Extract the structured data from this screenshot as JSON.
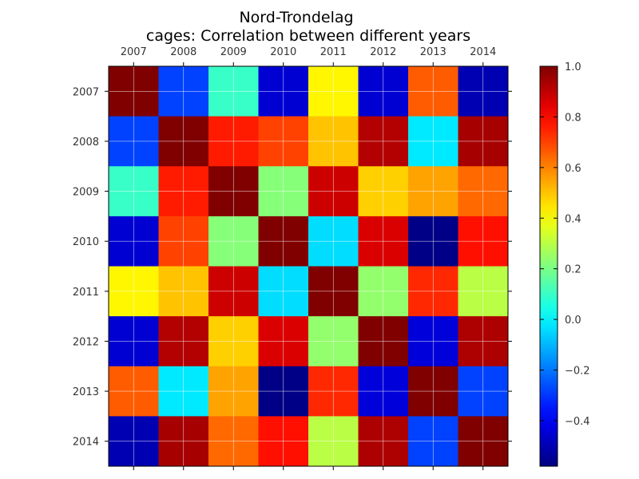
{
  "chart_data": {
    "type": "heatmap",
    "title": "Nord-Trondelag",
    "subtitle": "cages: Correlation between different years",
    "xlabel": "",
    "ylabel": "",
    "x_categories": [
      "2007",
      "2008",
      "2009",
      "2010",
      "2011",
      "2012",
      "2013",
      "2014"
    ],
    "y_categories": [
      "2007",
      "2008",
      "2009",
      "2010",
      "2011",
      "2012",
      "2013",
      "2014"
    ],
    "values": [
      [
        1.0,
        -0.28,
        0.1,
        -0.45,
        0.42,
        -0.45,
        0.66,
        -0.5
      ],
      [
        -0.28,
        1.0,
        0.76,
        0.7,
        0.5,
        0.92,
        -0.02,
        0.94
      ],
      [
        0.1,
        0.76,
        1.0,
        0.22,
        0.88,
        0.48,
        0.55,
        0.64
      ],
      [
        -0.45,
        0.7,
        0.22,
        1.0,
        -0.04,
        0.86,
        -0.57,
        0.78
      ],
      [
        0.42,
        0.5,
        0.88,
        -0.04,
        1.0,
        0.24,
        0.74,
        0.3
      ],
      [
        -0.45,
        0.92,
        0.48,
        0.86,
        0.24,
        1.0,
        -0.44,
        0.93
      ],
      [
        0.66,
        -0.02,
        0.55,
        -0.57,
        0.74,
        -0.44,
        1.0,
        -0.28
      ],
      [
        -0.5,
        0.94,
        0.64,
        0.78,
        0.3,
        0.93,
        -0.28,
        1.0
      ]
    ],
    "colormap": "jet",
    "vmin": -0.58,
    "vmax": 1.0,
    "colorbar_ticks": [
      "1.0",
      "0.8",
      "0.6",
      "0.4",
      "0.2",
      "0.0",
      "−0.2",
      "−0.4"
    ],
    "colorbar_tick_values": [
      1.0,
      0.8,
      0.6,
      0.4,
      0.2,
      0.0,
      -0.2,
      -0.4
    ],
    "grid": true,
    "x_tick_position": "top"
  }
}
